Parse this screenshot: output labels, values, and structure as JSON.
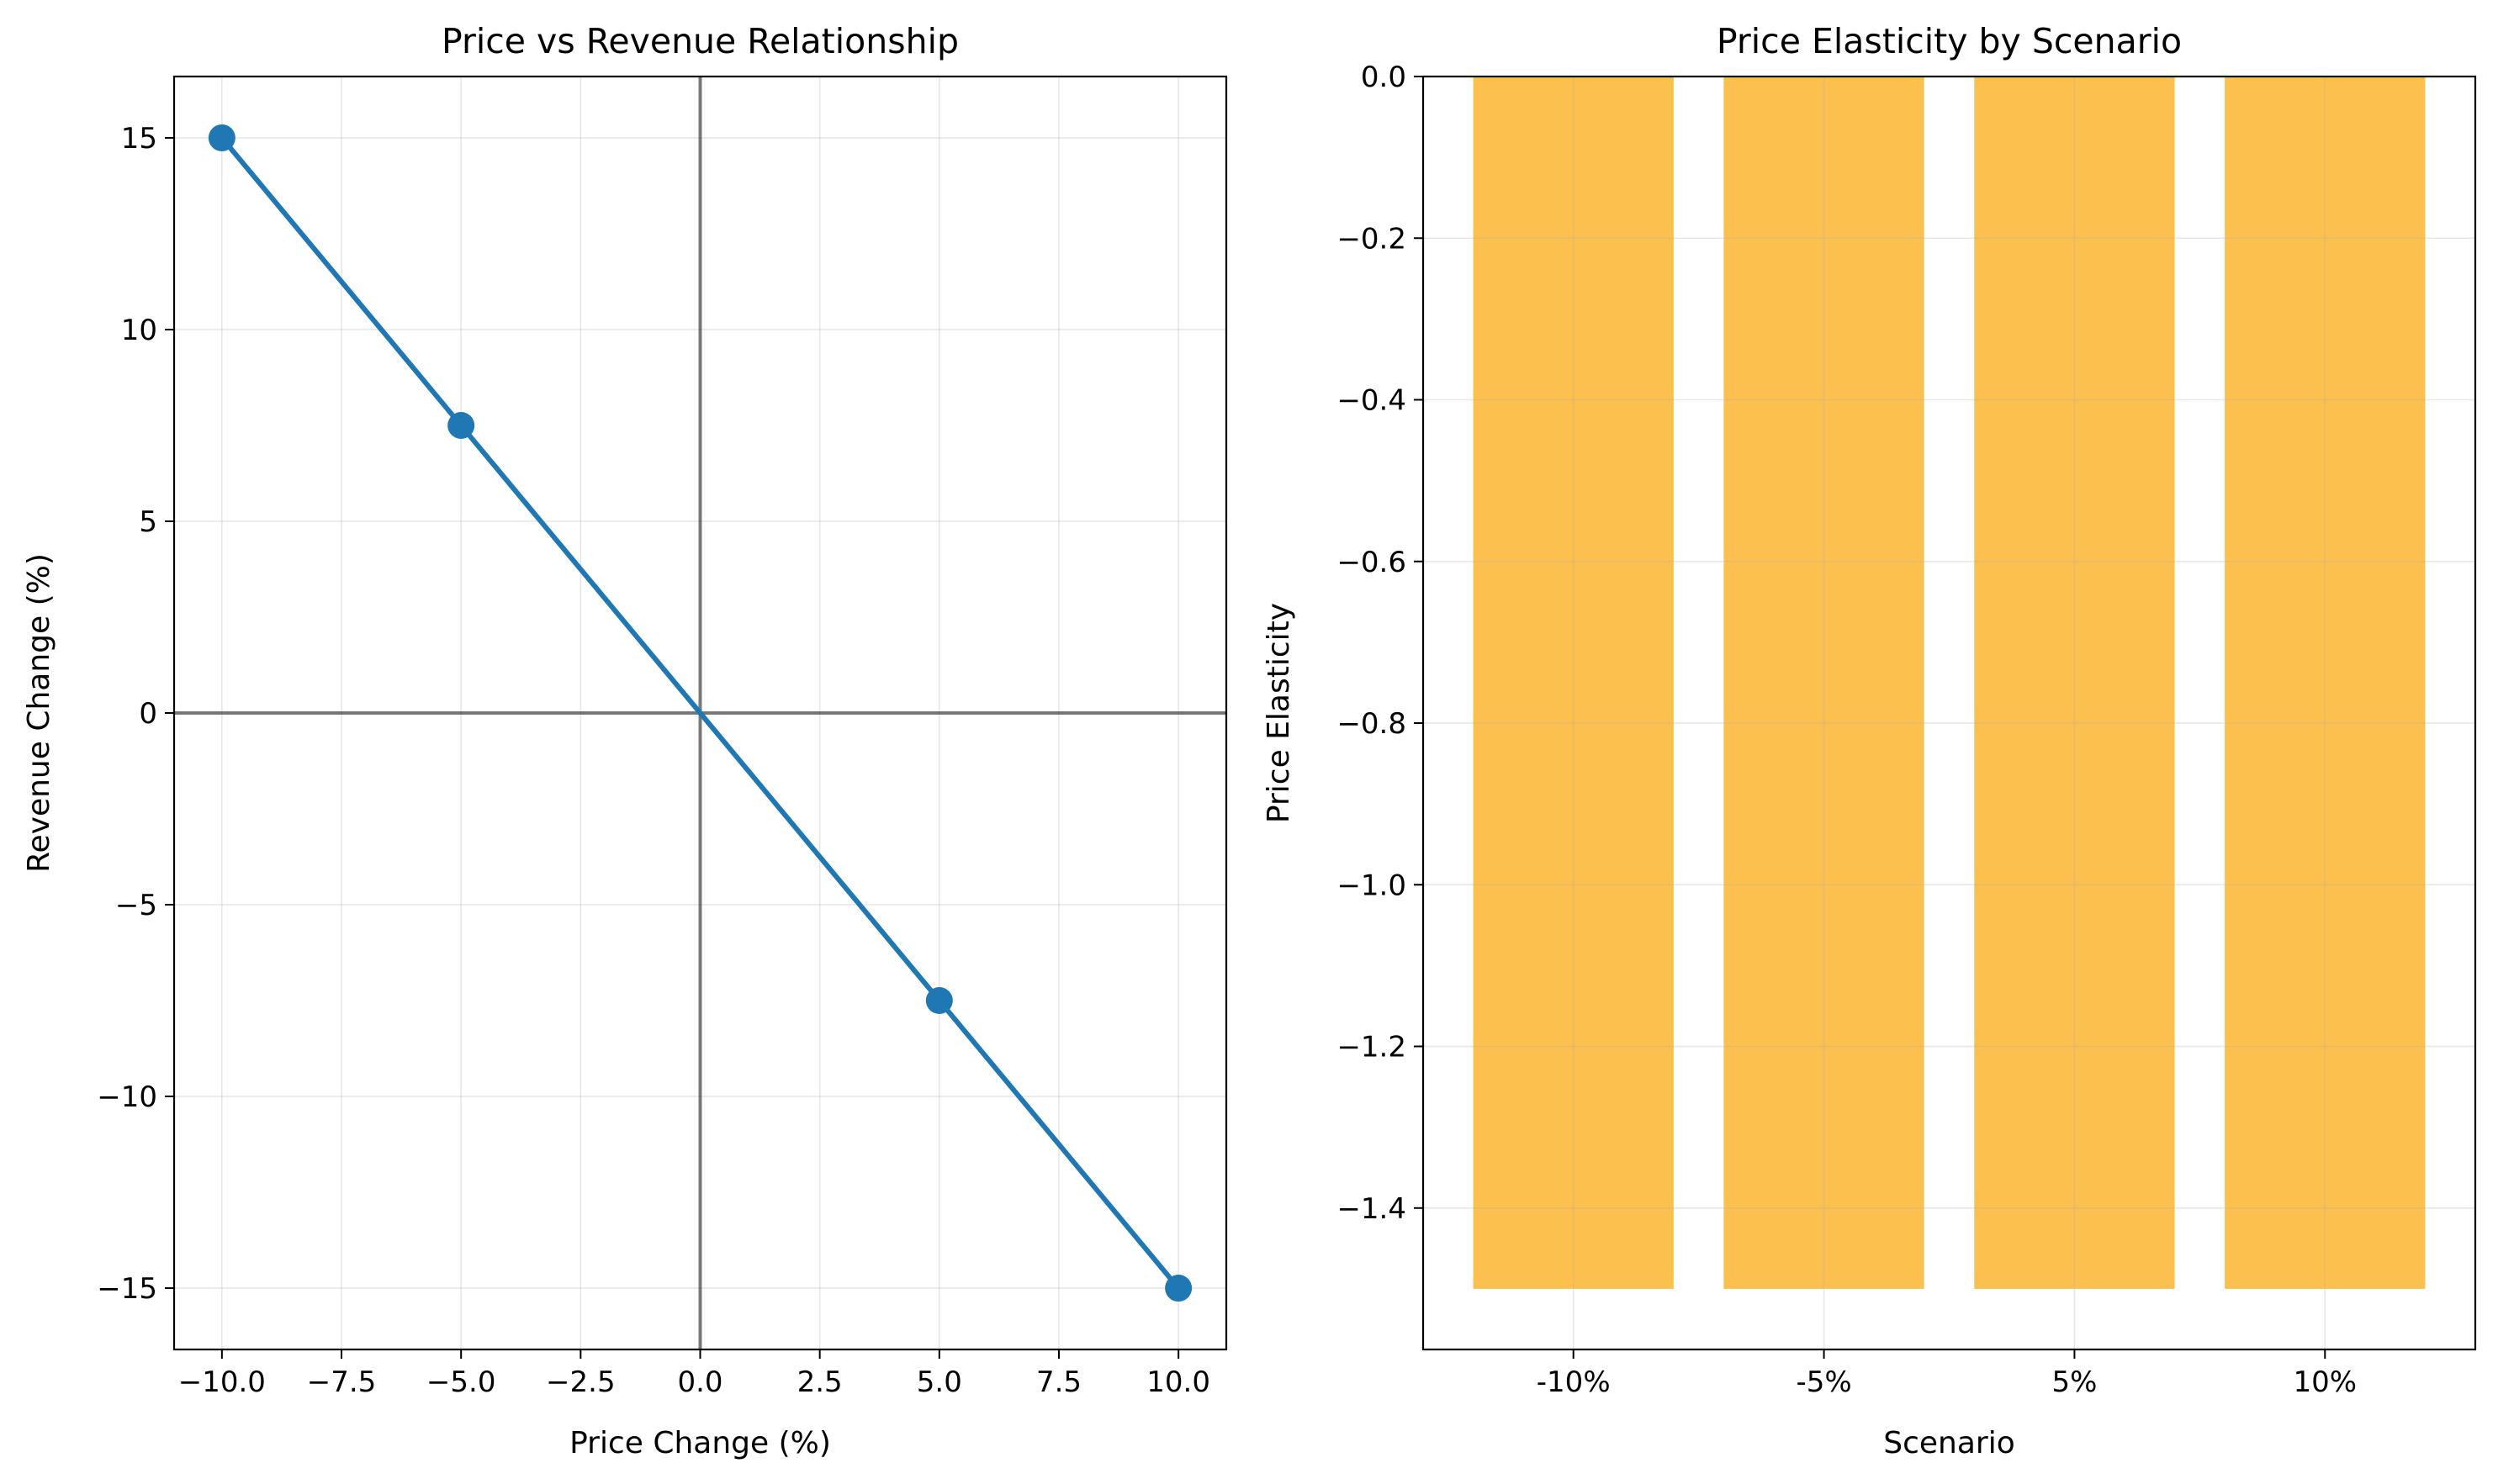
{
  "chart_data": [
    {
      "type": "line",
      "title": "Price vs Revenue Relationship",
      "xlabel": "Price Change (%)",
      "ylabel": "Revenue Change (%)",
      "x": [
        -10,
        -5,
        5,
        10
      ],
      "series": [
        {
          "values": [
            15.0,
            7.5,
            -7.5,
            -15.0
          ],
          "color": "#1f77b4",
          "marker": "circle"
        }
      ],
      "xlim": [
        -11,
        11
      ],
      "ylim": [
        -16.6,
        16.6
      ],
      "xticks": [
        -10,
        -7.5,
        -5,
        -2.5,
        0,
        2.5,
        5,
        7.5,
        10
      ],
      "xtick_labels": [
        "−10.0",
        "−7.5",
        "−5.0",
        "−2.5",
        "0.0",
        "2.5",
        "5.0",
        "7.5",
        "10.0"
      ],
      "yticks": [
        15,
        10,
        5,
        0,
        -5,
        -10,
        -15
      ],
      "ytick_labels": [
        "15",
        "10",
        "5",
        "0",
        "−5",
        "−10",
        "−15"
      ],
      "reference_lines": {
        "horizontal": 0,
        "vertical": 0,
        "color": "#000000"
      },
      "grid": true
    },
    {
      "type": "bar",
      "title": "Price Elasticity by Scenario",
      "xlabel": "Scenario",
      "ylabel": "Price Elasticity",
      "categories": [
        "-10%",
        "-5%",
        "5%",
        "10%"
      ],
      "values": [
        -1.5,
        -1.5,
        -1.5,
        -1.5
      ],
      "color": "#fbb022",
      "ylim": [
        -1.575,
        0
      ],
      "yticks": [
        0,
        -0.2,
        -0.4,
        -0.6,
        -0.8,
        -1.0,
        -1.2,
        -1.4
      ],
      "ytick_labels": [
        "0.0",
        "−0.2",
        "−0.4",
        "−0.6",
        "−0.8",
        "−1.0",
        "−1.2",
        "−1.4"
      ],
      "grid": true
    }
  ]
}
